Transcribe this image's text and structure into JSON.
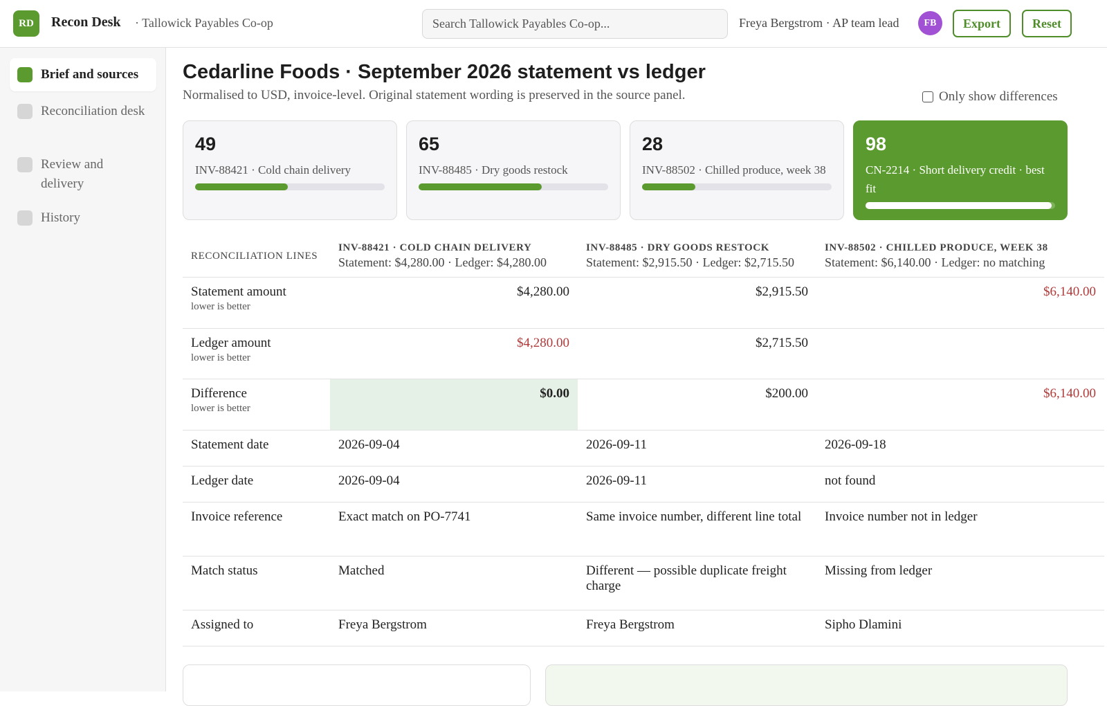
{
  "header": {
    "logo": "RD",
    "app_name": "Recon Desk",
    "org": "· Tallowick Payables Co-op",
    "search_placeholder": "Search Tallowick Payables Co-op...",
    "user": "Freya Bergstrom · AP team lead",
    "avatar": "FB",
    "buttons": [
      "Export",
      "Reset"
    ]
  },
  "sidebar": {
    "items": [
      {
        "label": "Brief and sources",
        "active": true
      },
      {
        "label": "Reconciliation desk",
        "active": false
      },
      {
        "label": "Review and delivery",
        "active": false
      },
      {
        "label": "History",
        "active": false
      }
    ]
  },
  "main": {
    "title": "Cedarline Foods · September 2026 statement vs ledger",
    "subtitle": "Normalised to USD, invoice-level. Original statement wording is preserved in the source panel.",
    "filter_label": "Only show differences",
    "cards": [
      {
        "score": 49,
        "label": "INV-88421 · Cold chain delivery",
        "best": false
      },
      {
        "score": 65,
        "label": "INV-88485 · Dry goods restock",
        "best": false
      },
      {
        "score": 28,
        "label": "INV-88502 · Chilled produce, week 38",
        "best": false
      },
      {
        "score": 98,
        "label": "CN-2214 · Short delivery credit · best fit",
        "best": true
      }
    ],
    "table": {
      "header_label": "RECONCILIATION LINES",
      "columns": [
        {
          "title": "INV-88421 · COLD CHAIN DELIVERY",
          "summary": "Statement: $4,280.00 · Ledger: $4,280.00"
        },
        {
          "title": "INV-88485 · DRY GOODS RESTOCK",
          "summary": "Statement: $2,915.50 · Ledger: $2,715.50"
        },
        {
          "title": "INV-88502 · CHILLED PRODUCE, WEEK 38",
          "summary": "Statement: $6,140.00 · Ledger: no matching"
        }
      ],
      "rows": [
        {
          "label": "Statement amount",
          "note": "lower is better",
          "numeric": true,
          "cells": [
            {
              "text": "$4,280.00",
              "tone": "normal"
            },
            {
              "text": "$2,915.50",
              "tone": "normal"
            },
            {
              "text": "$6,140.00",
              "tone": "bad"
            }
          ]
        },
        {
          "label": "Ledger amount",
          "note": "lower is better",
          "numeric": true,
          "cells": [
            {
              "text": "$4,280.00",
              "tone": "bad"
            },
            {
              "text": "$2,715.50",
              "tone": "normal"
            },
            {
              "text": null,
              "tone": "normal"
            }
          ]
        },
        {
          "label": "Difference",
          "note": "lower is better",
          "numeric": true,
          "cells": [
            {
              "text": "$0.00",
              "tone": "best"
            },
            {
              "text": "$200.00",
              "tone": "normal"
            },
            {
              "text": "$6,140.00",
              "tone": "bad"
            }
          ]
        },
        {
          "label": "Statement date",
          "numeric": false,
          "cells": [
            {
              "text": "2026-09-04"
            },
            {
              "text": "2026-09-11"
            },
            {
              "text": "2026-09-18"
            }
          ]
        },
        {
          "label": "Ledger date",
          "numeric": false,
          "cells": [
            {
              "text": "2026-09-04"
            },
            {
              "text": "2026-09-11"
            },
            {
              "text": "not found"
            }
          ]
        },
        {
          "label": "Invoice reference",
          "numeric": false,
          "cells": [
            {
              "text": "Exact match on PO-7741"
            },
            {
              "text": "Same invoice number, different line total"
            },
            {
              "text": "Invoice number not in ledger"
            }
          ]
        },
        {
          "label": "Match status",
          "numeric": false,
          "cells": [
            {
              "text": "Matched"
            },
            {
              "text": "Different — possible duplicate freight charge"
            },
            {
              "text": "Missing from ledger"
            }
          ]
        },
        {
          "label": "Assigned to",
          "numeric": false,
          "cells": [
            {
              "text": "Freya Bergstrom"
            },
            {
              "text": "Freya Bergstrom"
            },
            {
              "text": "Sipho Dlamini"
            }
          ]
        }
      ]
    }
  }
}
